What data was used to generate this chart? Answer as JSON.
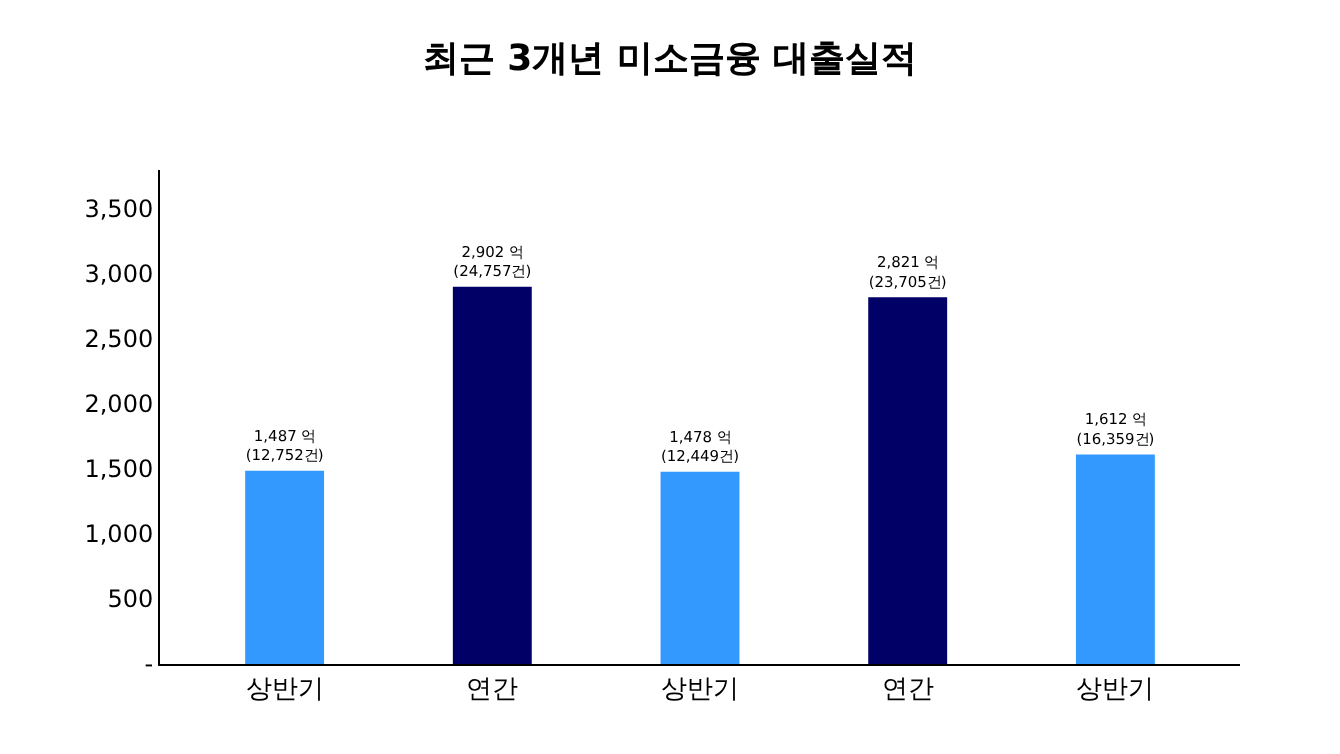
{
  "chart_data": {
    "type": "bar",
    "title": "최근 3개년 미소금융 대출실적",
    "categories": [
      "상반기",
      "연간",
      "상반기",
      "연간",
      "상반기"
    ],
    "values": [
      1487,
      2902,
      1478,
      2821,
      1612
    ],
    "colors": [
      "#3399ff",
      "#000066",
      "#3399ff",
      "#000066",
      "#3399ff"
    ],
    "value_labels": [
      "1,487 억\n(12,752건)",
      "2,902 억\n(24,757건)",
      "1,478 억\n(12,449건)",
      "2,821 억\n(23,705건)",
      "1,612 억\n(16,359건)"
    ],
    "ylim": [
      0,
      3800
    ],
    "yticks": [
      {
        "value": 0,
        "label": "-"
      },
      {
        "value": 500,
        "label": "500"
      },
      {
        "value": 1000,
        "label": "1,000"
      },
      {
        "value": 1500,
        "label": "1,500"
      },
      {
        "value": 2000,
        "label": "2,000"
      },
      {
        "value": 2500,
        "label": "2,500"
      },
      {
        "value": 3000,
        "label": "3,000"
      },
      {
        "value": 3500,
        "label": "3,500"
      }
    ]
  }
}
